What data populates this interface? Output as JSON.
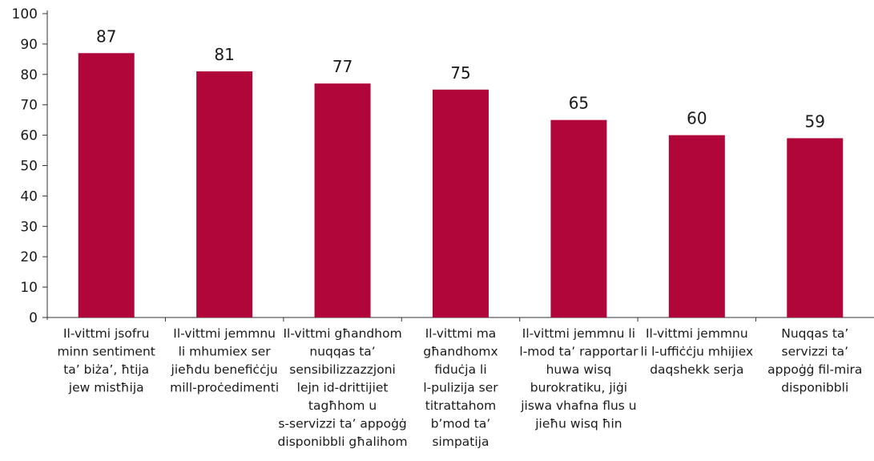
{
  "chart_data": {
    "type": "bar",
    "categories": [
      [
        "Il-vittmi jsofru",
        "minn sentiment",
        "ta’ biża’, ħtija",
        "jew mistħija"
      ],
      [
        "Il-vittmi jemmnu",
        "li mhumiex ser",
        "jieħdu benefiċċju",
        "mill-proċedimenti"
      ],
      [
        "Il-vittmi għandhom",
        "nuqqas ta’",
        "sensibilizzazzjoni",
        "lejn id-drittijiet",
        "tagħhom u",
        "s-servizzi ta’ appoġġ",
        "disponibbli għalihom"
      ],
      [
        "Il-vittmi ma",
        "għandhomx",
        "fiduċja li",
        "l-pulizija ser",
        "titrattahom",
        "b’mod ta’",
        "simpatija"
      ],
      [
        "Il-vittmi jemmnu li",
        "l-mod ta’ rapportar",
        "huwa wisq",
        "burokratiku, jiġi",
        "jiswa vhafna flus u",
        "jieħu wisq ħin"
      ],
      [
        "Il-vittmi jemmnu",
        "li l-uffiċċju mhijiex",
        "daqshekk serja"
      ],
      [
        "Nuqqas ta’",
        "servizzi ta’",
        "appoġġ fil-mira",
        "disponibbli"
      ]
    ],
    "values": [
      87,
      81,
      77,
      75,
      65,
      60,
      59
    ],
    "ylim": [
      0,
      100
    ],
    "yticks": [
      0,
      10,
      20,
      30,
      40,
      50,
      60,
      70,
      80,
      90,
      100
    ],
    "bar_color": "#b0063a",
    "grid": false,
    "legend": "none"
  }
}
